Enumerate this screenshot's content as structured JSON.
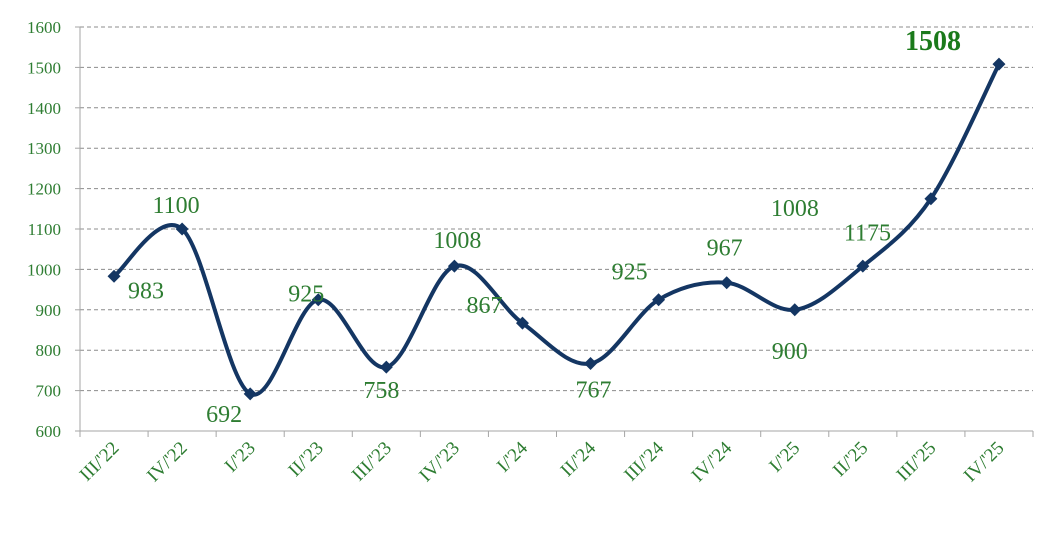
{
  "chart_data": {
    "type": "line",
    "title": "",
    "xlabel": "",
    "ylabel": "",
    "categories": [
      "III/'22",
      "IV/'22",
      "I/'23",
      "II/'23",
      "III/'23",
      "IV/'23",
      "I/'24",
      "II/'24",
      "III/'24",
      "IV/'24",
      "I/'25",
      "II/'25",
      "III/'25",
      "IV/'25"
    ],
    "series": [
      {
        "values": [
          983,
          1100,
          692,
          925,
          758,
          1008,
          867,
          767,
          925,
          967,
          900,
          1008,
          1175,
          1508
        ]
      }
    ],
    "data_labels": [
      "983",
      "1100",
      "692",
      "925",
      "758",
      "1008",
      "867",
      "767",
      "925",
      "967",
      "900",
      "1008",
      "1175",
      "1508"
    ],
    "highlighted_label": "1508",
    "ylim": [
      600,
      1600
    ],
    "yticks": [
      600,
      700,
      800,
      900,
      1000,
      1100,
      1200,
      1300,
      1400,
      1500,
      1600
    ],
    "ytick_labels": [
      "600",
      "700",
      "800",
      "900",
      "1000",
      "1100",
      "1200",
      "1300",
      "1400",
      "1500",
      "1600"
    ],
    "grid": true,
    "grid_style": "dashed",
    "legend": "none",
    "smoothed": true,
    "marker": "diamond",
    "colors": {
      "line": "#143663",
      "marker": "#143663",
      "label_text": "#2E7D32",
      "highlight_text": "#1B7A1B",
      "grid": "#8C8C8C",
      "axis": "#A6A6A6"
    }
  }
}
